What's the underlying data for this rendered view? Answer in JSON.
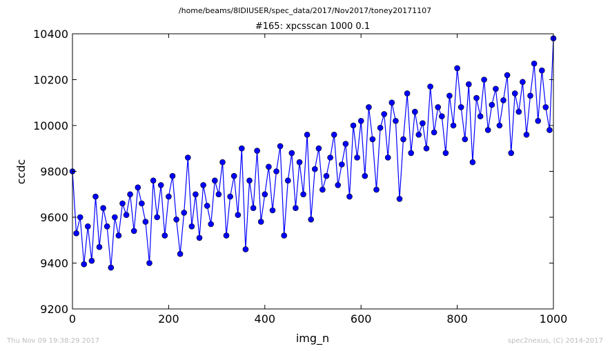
{
  "suptitle": "/home/beams/8IDIUSER/spec_data/2017/Nov2017/toney20171107",
  "footer_left": "Thu Nov 09 19:38:29 2017",
  "footer_right": "spec2nexus, (C) 2014-2017",
  "chart_data": {
    "type": "line",
    "title": "#165: xpcsscan 1000 0.1",
    "xlabel": "img_n",
    "ylabel": "ccdc",
    "xlim": [
      0,
      1000
    ],
    "ylim": [
      9200,
      10400
    ],
    "xticks": [
      0,
      200,
      400,
      600,
      800,
      1000
    ],
    "yticks": [
      9200,
      9400,
      9600,
      9800,
      10000,
      10200,
      10400
    ],
    "xtick_labels": [
      "0",
      "200",
      "400",
      "600",
      "800",
      "1000"
    ],
    "ytick_labels": [
      "9200",
      "9400",
      "9600",
      "9800",
      "10000",
      "10200",
      "10400"
    ],
    "grid": false,
    "line_color": "#0000ff",
    "marker_color": "#0000ff",
    "marker_edge": "#000000",
    "series": [
      {
        "x": [
          0,
          8,
          16,
          24,
          32,
          40,
          48,
          56,
          64,
          72,
          80,
          88,
          96,
          104,
          112,
          120,
          128,
          136,
          144,
          152,
          160,
          168,
          176,
          184,
          192,
          200,
          208,
          216,
          224,
          232,
          240,
          248,
          256,
          264,
          272,
          280,
          288,
          296,
          304,
          312,
          320,
          328,
          336,
          344,
          352,
          360,
          368,
          376,
          384,
          392,
          400,
          408,
          416,
          424,
          432,
          440,
          448,
          456,
          464,
          472,
          480,
          488,
          496,
          504,
          512,
          520,
          528,
          536,
          544,
          552,
          560,
          568,
          576,
          584,
          592,
          600,
          608,
          616,
          624,
          632,
          640,
          648,
          656,
          664,
          672,
          680,
          688,
          696,
          704,
          712,
          720,
          728,
          736,
          744,
          752,
          760,
          768,
          776,
          784,
          792,
          800,
          808,
          816,
          824,
          832,
          840,
          848,
          856,
          864,
          872,
          880,
          888,
          896,
          904,
          912,
          920,
          928,
          936,
          944,
          952,
          960,
          968,
          976,
          984,
          992,
          1000
        ],
        "y": [
          9800,
          9530,
          9600,
          9395,
          9560,
          9410,
          9690,
          9470,
          9640,
          9560,
          9380,
          9600,
          9520,
          9660,
          9610,
          9700,
          9540,
          9730,
          9660,
          9580,
          9400,
          9760,
          9600,
          9740,
          9520,
          9690,
          9780,
          9590,
          9440,
          9620,
          9860,
          9560,
          9700,
          9510,
          9740,
          9650,
          9570,
          9760,
          9700,
          9840,
          9520,
          9690,
          9780,
          9610,
          9900,
          9460,
          9760,
          9640,
          9890,
          9580,
          9700,
          9820,
          9630,
          9800,
          9910,
          9520,
          9760,
          9880,
          9640,
          9840,
          9700,
          9960,
          9590,
          9810,
          9900,
          9720,
          9780,
          9860,
          9960,
          9740,
          9830,
          9920,
          9690,
          10000,
          9860,
          10020,
          9780,
          10080,
          9940,
          9720,
          9990,
          10050,
          9860,
          10100,
          10020,
          9680,
          9940,
          10140,
          9880,
          10060,
          9960,
          10010,
          9900,
          10170,
          9970,
          10080,
          10040,
          9880,
          10130,
          10000,
          10250,
          10080,
          9940,
          10180,
          9840,
          10120,
          10040,
          10200,
          9980,
          10090,
          10160,
          10000,
          10110,
          10220,
          9880,
          10140,
          10060,
          10190,
          9960,
          10130,
          10270,
          10020,
          10240,
          10080,
          9980,
          10380
        ]
      }
    ]
  }
}
